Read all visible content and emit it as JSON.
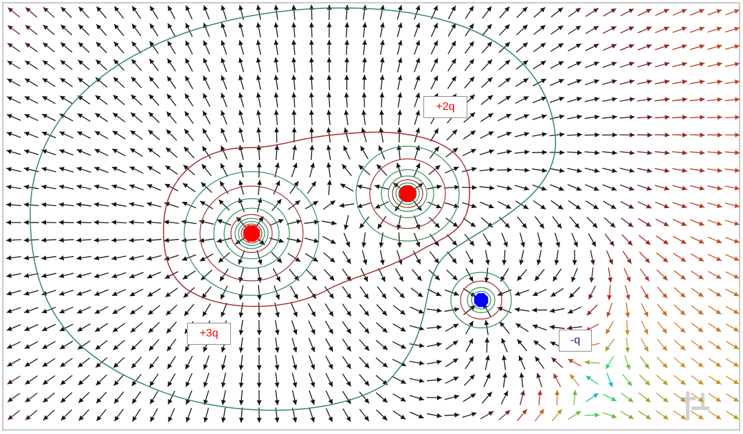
{
  "charges": [
    {
      "id": "a",
      "label": "+2q",
      "value": 2,
      "color": "#ff0000"
    },
    {
      "id": "b",
      "label": "+3q",
      "value": 3,
      "color": "#ff0000"
    },
    {
      "id": "c",
      "label": "-q",
      "value": -1,
      "color": "#0000ff"
    }
  ],
  "colors": {
    "positive_label": "#ff0000",
    "negative_label": "#1a237e",
    "equipotential_outer": "#2e8b57",
    "equipotential_inner": "#a52a2a",
    "arrow_low": "#3344ee",
    "arrow_high": "#111111"
  },
  "logo": {
    "icon": "lab-logo-icon"
  }
}
